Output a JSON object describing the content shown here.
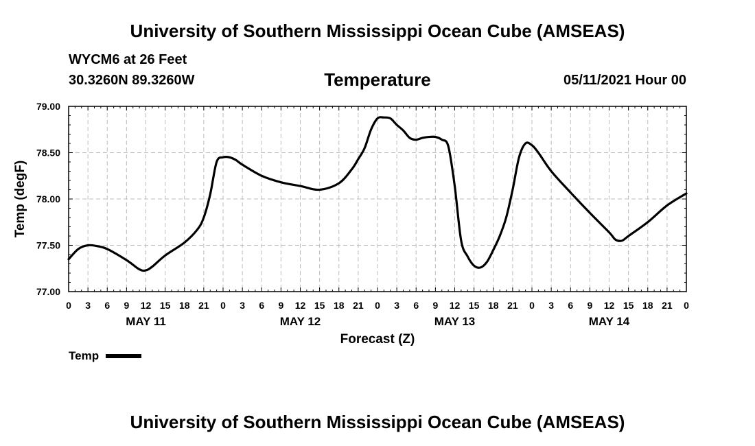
{
  "header": {
    "title": "University of Southern Mississippi Ocean Cube (AMSEAS)",
    "station": "WYCM6 at 26 Feet",
    "coords": "30.3260N  89.3260W",
    "chart_title": "Temperature",
    "datetime": "05/11/2021 Hour 00"
  },
  "footer": {
    "title": "University of Southern Mississippi Ocean Cube (AMSEAS)"
  },
  "legend": {
    "label": "Temp"
  },
  "chart_data": {
    "type": "line",
    "title": "Temperature",
    "xlabel": "Forecast (Z)",
    "ylabel": "Temp (degF)",
    "ylim": [
      77.0,
      79.0
    ],
    "xlim": [
      0,
      96
    ],
    "y_ticks": [
      "77.00",
      "77.50",
      "78.00",
      "78.50",
      "79.00"
    ],
    "y_tick_values": [
      77.0,
      77.5,
      78.0,
      78.5,
      79.0
    ],
    "x_tick_labels": [
      "0",
      "3",
      "6",
      "9",
      "12",
      "15",
      "18",
      "21",
      "0",
      "3",
      "6",
      "9",
      "12",
      "15",
      "18",
      "21",
      "0",
      "3",
      "6",
      "9",
      "12",
      "15",
      "18",
      "21",
      "0",
      "3",
      "6",
      "9",
      "12",
      "15",
      "18",
      "21",
      "0"
    ],
    "day_labels": [
      {
        "label": "MAY 11",
        "hour": 12
      },
      {
        "label": "MAY 12",
        "hour": 36
      },
      {
        "label": "MAY 13",
        "hour": 60
      },
      {
        "label": "MAY 14",
        "hour": 84
      }
    ],
    "grid": true,
    "series": [
      {
        "name": "Temp",
        "color": "#000000",
        "x": [
          0,
          1.5,
          3,
          4.5,
          6,
          9,
          11,
          12,
          13,
          15,
          18,
          20,
          21,
          22,
          23,
          24,
          25,
          26,
          27,
          30,
          33,
          36,
          39,
          42,
          44,
          45,
          46,
          47,
          48,
          49,
          50,
          51,
          52,
          53,
          54,
          55,
          56,
          57,
          58,
          59,
          60,
          61,
          62,
          63,
          64,
          65,
          66,
          67,
          68,
          69,
          70,
          71,
          72,
          73,
          75,
          78,
          81,
          84,
          85,
          86,
          87,
          90,
          93,
          96
        ],
        "values": [
          77.35,
          77.46,
          77.5,
          77.49,
          77.46,
          77.34,
          77.24,
          77.23,
          77.27,
          77.39,
          77.53,
          77.67,
          77.8,
          78.05,
          78.4,
          78.45,
          78.45,
          78.42,
          78.37,
          78.25,
          78.18,
          78.14,
          78.1,
          78.17,
          78.32,
          78.43,
          78.55,
          78.75,
          78.87,
          78.88,
          78.87,
          78.8,
          78.74,
          78.66,
          78.64,
          78.66,
          78.67,
          78.67,
          78.64,
          78.57,
          78.14,
          77.55,
          77.38,
          77.28,
          77.26,
          77.32,
          77.45,
          77.6,
          77.8,
          78.1,
          78.45,
          78.6,
          78.58,
          78.5,
          78.3,
          78.07,
          77.85,
          77.64,
          77.56,
          77.55,
          77.6,
          77.75,
          77.93,
          78.06
        ]
      }
    ]
  }
}
